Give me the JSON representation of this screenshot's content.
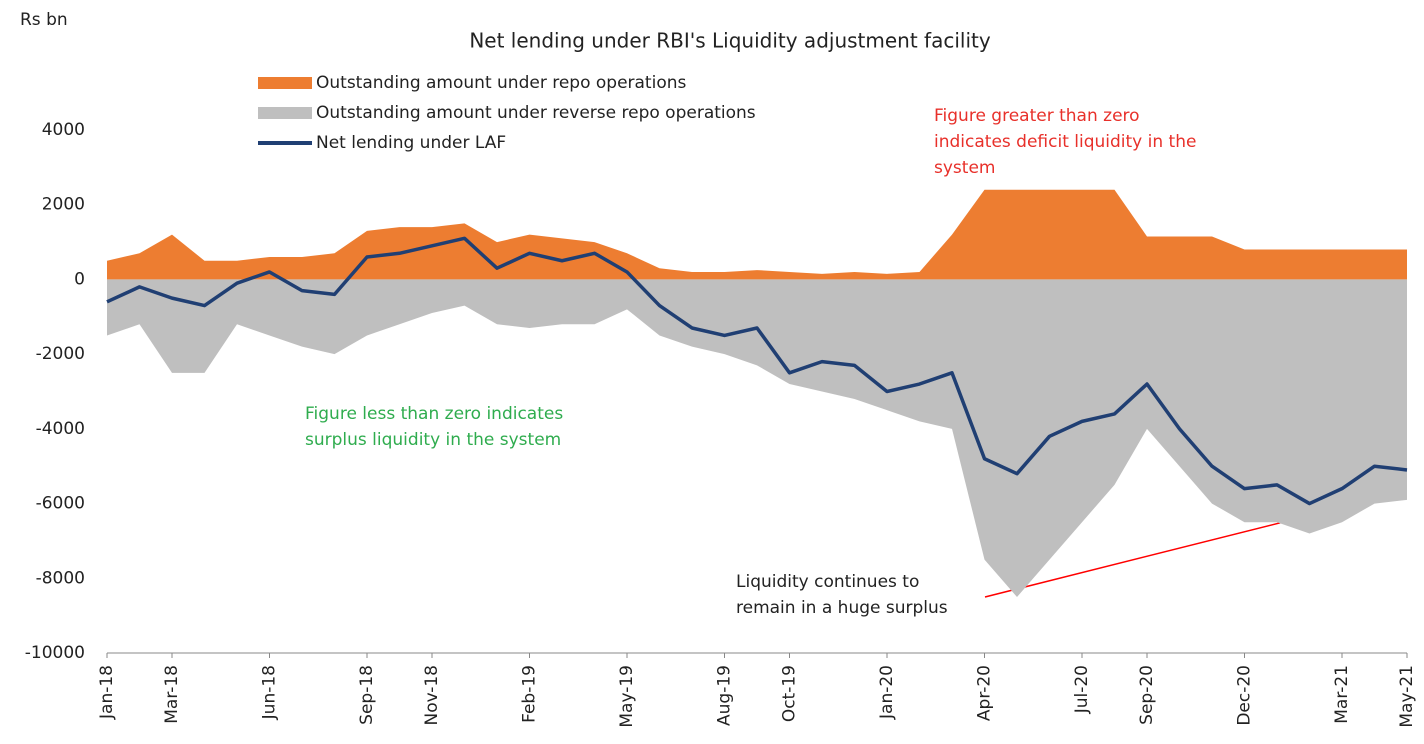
{
  "chart_data": {
    "type": "area-line",
    "title": "Net lending under RBI's Liquidity  adjustment facility",
    "y_axis_label": "Rs bn",
    "categories": [
      "Jan-18",
      null,
      "Mar-18",
      null,
      null,
      "Jun-18",
      null,
      null,
      "Sep-18",
      null,
      "Nov-18",
      null,
      null,
      "Feb-19",
      null,
      null,
      "May-19",
      null,
      null,
      "Aug-19",
      null,
      "Oct-19",
      null,
      null,
      "Jan-20",
      null,
      null,
      "Apr-20",
      null,
      null,
      "Jul-20",
      null,
      "Sep-20",
      null,
      null,
      "Dec-20",
      null,
      null,
      "Mar-21",
      null,
      "May-21"
    ],
    "series": [
      {
        "name": "Outstanding amount under repo operations",
        "kind": "area",
        "color": "#ed7d31",
        "values": [
          500,
          700,
          1200,
          500,
          500,
          600,
          600,
          700,
          1300,
          1400,
          1400,
          1500,
          1000,
          1200,
          1100,
          1000,
          700,
          300,
          200,
          200,
          250,
          200,
          150,
          200,
          150,
          200,
          1200,
          2400,
          2400,
          2400,
          2400,
          2400,
          1150,
          1150,
          1150,
          800,
          800,
          800,
          800,
          800,
          800
        ]
      },
      {
        "name": "Outstanding amount under reverse repo operations",
        "kind": "area",
        "color": "#bfbfbf",
        "values": [
          -1500,
          -1200,
          -2500,
          -2500,
          -1200,
          -1500,
          -1800,
          -2000,
          -1500,
          -1200,
          -900,
          -700,
          -1200,
          -1300,
          -1200,
          -1200,
          -800,
          -1500,
          -1800,
          -2000,
          -2300,
          -2800,
          -3000,
          -3200,
          -3500,
          -3800,
          -4000,
          -7500,
          -8500,
          -7500,
          -6500,
          -5500,
          -4000,
          -5000,
          -6000,
          -6500,
          -6500,
          -6800,
          -6500,
          -6000,
          -5900
        ]
      },
      {
        "name": "Net lending under LAF",
        "kind": "line",
        "color": "#203f73",
        "values": [
          -600,
          -200,
          -500,
          -700,
          -100,
          200,
          -300,
          -400,
          600,
          700,
          900,
          1100,
          300,
          700,
          500,
          700,
          200,
          -700,
          -1300,
          -1500,
          -1300,
          -2500,
          -2200,
          -2300,
          -3000,
          -2800,
          -2500,
          -4800,
          -5200,
          -4200,
          -3800,
          -3600,
          -2800,
          -4000,
          -5000,
          -5600,
          -5500,
          -6000,
          -5600,
          -5000,
          -5100
        ]
      }
    ],
    "ylim": [
      -10000,
      4000
    ],
    "yticks": [
      -10000,
      -8000,
      -6000,
      -4000,
      -2000,
      0,
      2000,
      4000
    ],
    "annotations": [
      {
        "lines": [
          "Figure greater than zero",
          "indicates deficit liquidity in the",
          "system"
        ],
        "color": "#e8302a"
      },
      {
        "lines": [
          "Figure less than zero indicates",
          "surplus liquidity in the system"
        ],
        "color": "#2fac4e"
      },
      {
        "lines": [
          "Liquidity continues to",
          "remain in a huge surplus"
        ],
        "color": "#222222"
      }
    ]
  }
}
